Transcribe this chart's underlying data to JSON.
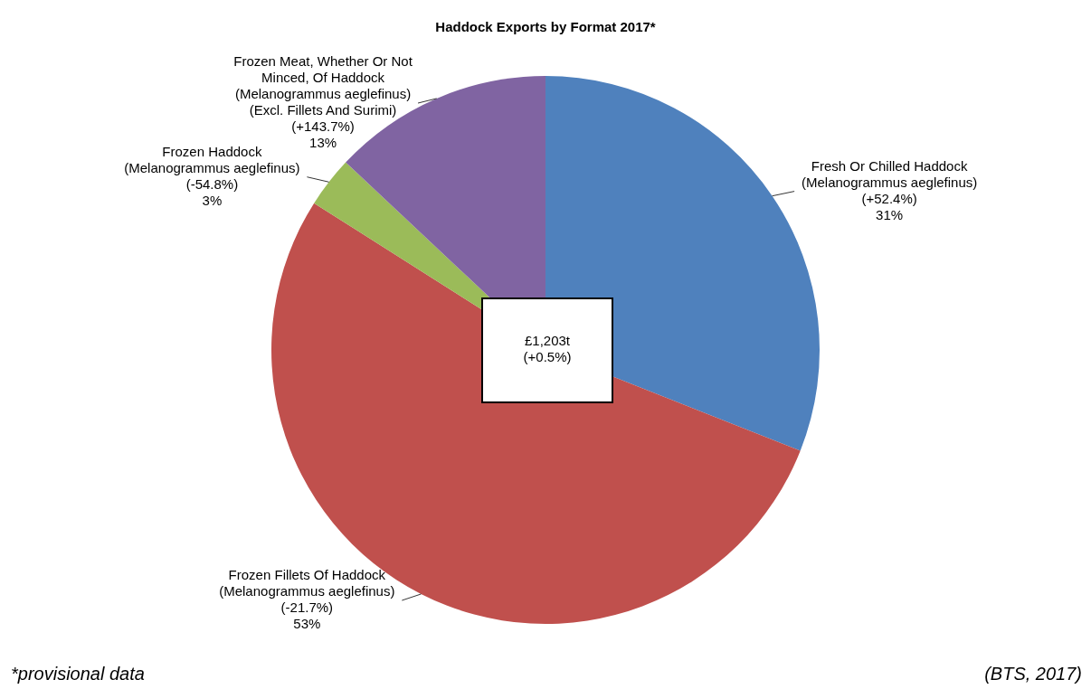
{
  "chart_data": {
    "type": "pie",
    "title": "Haddock Exports by Format 2017*",
    "categories": [
      "Fresh Or Chilled Haddock (Melanogrammus aeglefinus) (+52.4%)",
      "Frozen Fillets Of Haddock (Melanogrammus aeglefinus) (-21.7%)",
      "Frozen Haddock (Melanogrammus aeglefinus) (-54.8%)",
      "Frozen Meat, Whether Or Not Minced, Of Haddock (Melanogrammus aeglefinus) (Excl. Fillets And Surimi) (+143.7%)"
    ],
    "values": [
      31,
      53,
      3,
      13
    ],
    "colors": [
      "#4f81bd",
      "#c0504d",
      "#9bbb59",
      "#8064a2"
    ],
    "value_labels": [
      "31%",
      "53%",
      "3%",
      "13%"
    ],
    "legend": false,
    "annotations": [
      "£1,203t (+0.5%)",
      "*provisional data",
      "(BTS, 2017)"
    ]
  }
}
